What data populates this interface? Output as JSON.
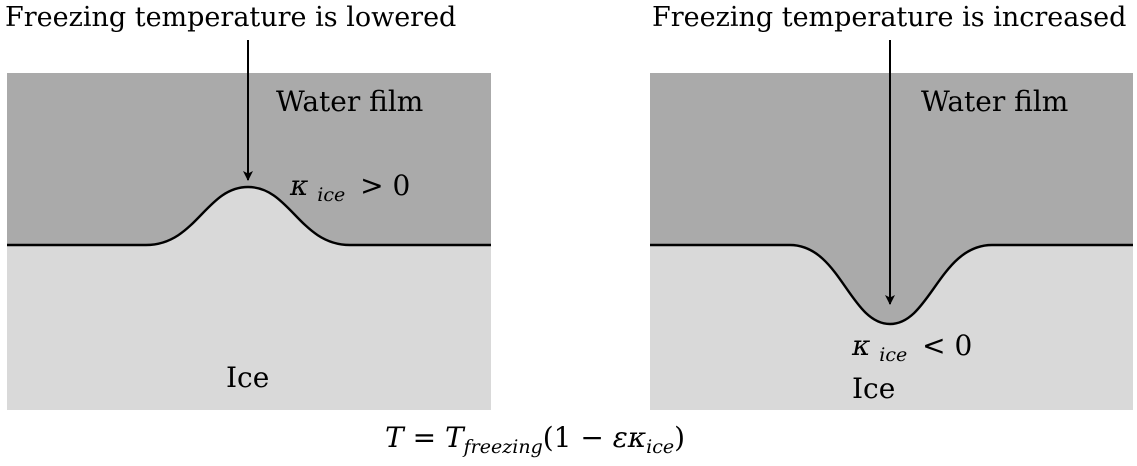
{
  "panels": {
    "left": {
      "caption": "Freezing temperature is lowered",
      "top_label": "Water film",
      "bottom_label": "Ice",
      "kappa_symbol": "κ",
      "kappa_subscript": "ice",
      "kappa_relation": "> 0"
    },
    "right": {
      "caption": "Freezing temperature is increased",
      "top_label": "Water film",
      "bottom_label": "Ice",
      "kappa_symbol": "κ",
      "kappa_subscript": "ice",
      "kappa_relation": "< 0"
    }
  },
  "equation": {
    "lhs": "T",
    "equals": " = ",
    "t_symbol": "T",
    "t_subscript": "freezing",
    "open": "(1 − ",
    "epsilon": "ε",
    "kappa": "κ",
    "kappa_subscript": "ice",
    "close": ")"
  },
  "colors": {
    "water": "#aaaaaa",
    "ice": "#d9d9d9",
    "line": "#000000"
  }
}
